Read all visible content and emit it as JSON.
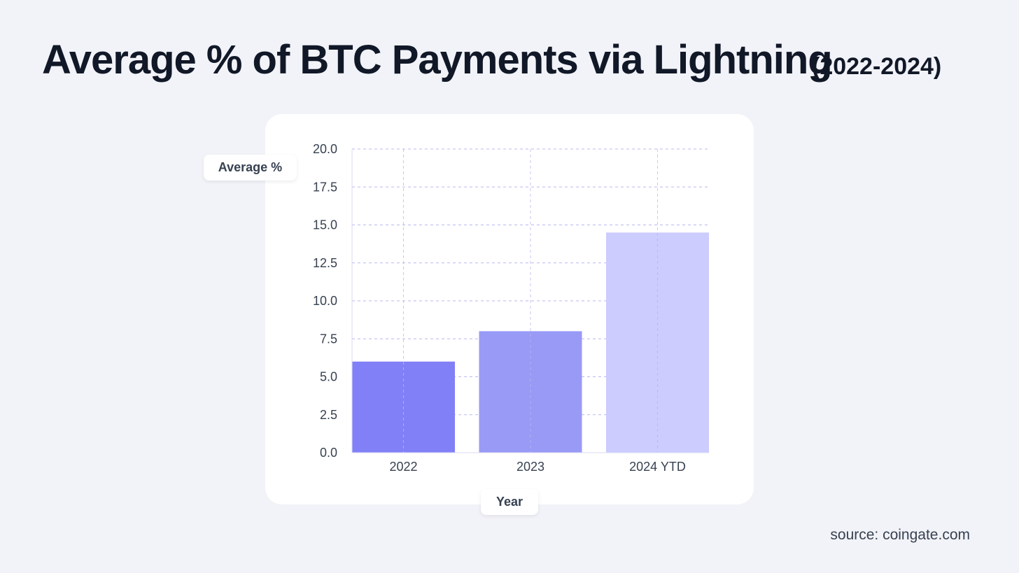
{
  "header": {
    "title": "Average % of BTC Payments via Lightning",
    "subtitle": "(2022-2024)"
  },
  "footer": {
    "source": "source: coingate.com"
  },
  "chart_data": {
    "type": "bar",
    "title": "Average % of BTC Payments via Lightning",
    "subtitle": "(2022-2024)",
    "xlabel": "Year",
    "ylabel": "Average %",
    "categories": [
      "2022",
      "2023",
      "2024 YTD"
    ],
    "values": [
      6.0,
      8.0,
      14.5
    ],
    "colors": [
      "#8280f6",
      "#9999f6",
      "#ccccfe"
    ],
    "ylim": [
      0,
      20
    ],
    "yticks": [
      "0.0",
      "2.5",
      "5.0",
      "7.5",
      "10.0",
      "12.5",
      "15.0",
      "17.5",
      "20.0"
    ],
    "grid": true,
    "grid_color": "#b8b8f2"
  }
}
